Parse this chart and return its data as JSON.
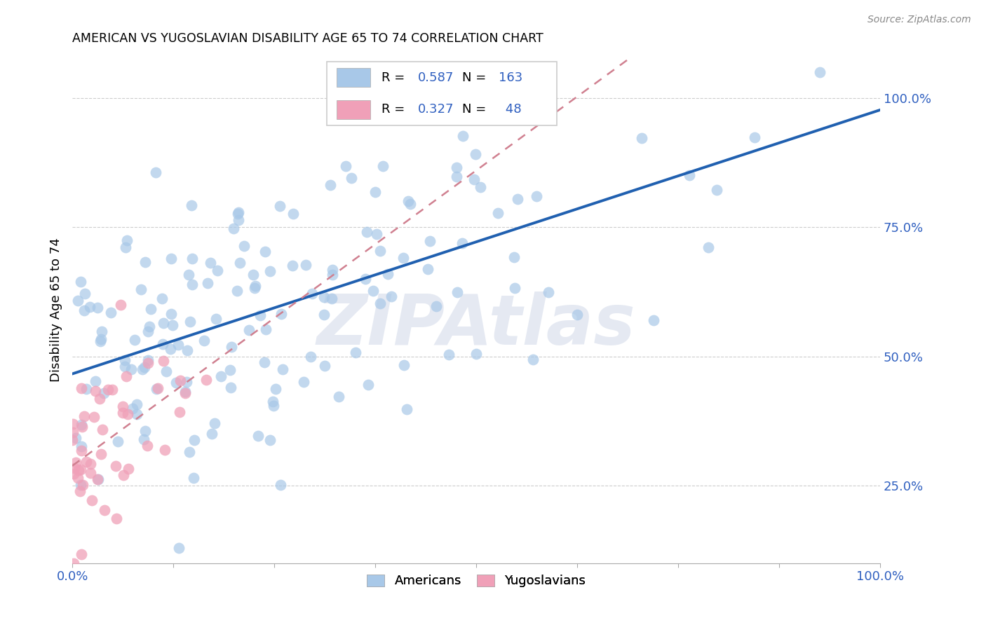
{
  "title": "AMERICAN VS YUGOSLAVIAN DISABILITY AGE 65 TO 74 CORRELATION CHART",
  "source": "Source: ZipAtlas.com",
  "ylabel": "Disability Age 65 to 74",
  "ytick_values": [
    0.25,
    0.5,
    0.75,
    1.0
  ],
  "xlim": [
    0.0,
    1.0
  ],
  "ylim": [
    0.1,
    1.08
  ],
  "watermark": "ZIPAtlas",
  "blue_scatter": "#a8c8e8",
  "pink_scatter": "#f0a0b8",
  "blue_line": "#2060b0",
  "pink_line": "#d08090",
  "R_american": 0.587,
  "N_american": 163,
  "R_yugoslav": 0.327,
  "N_yugoslav": 48,
  "legend_blue_text": "#3060c0",
  "legend_R1": "0.587",
  "legend_N1": "163",
  "legend_R2": "0.327",
  "legend_N2": "48"
}
